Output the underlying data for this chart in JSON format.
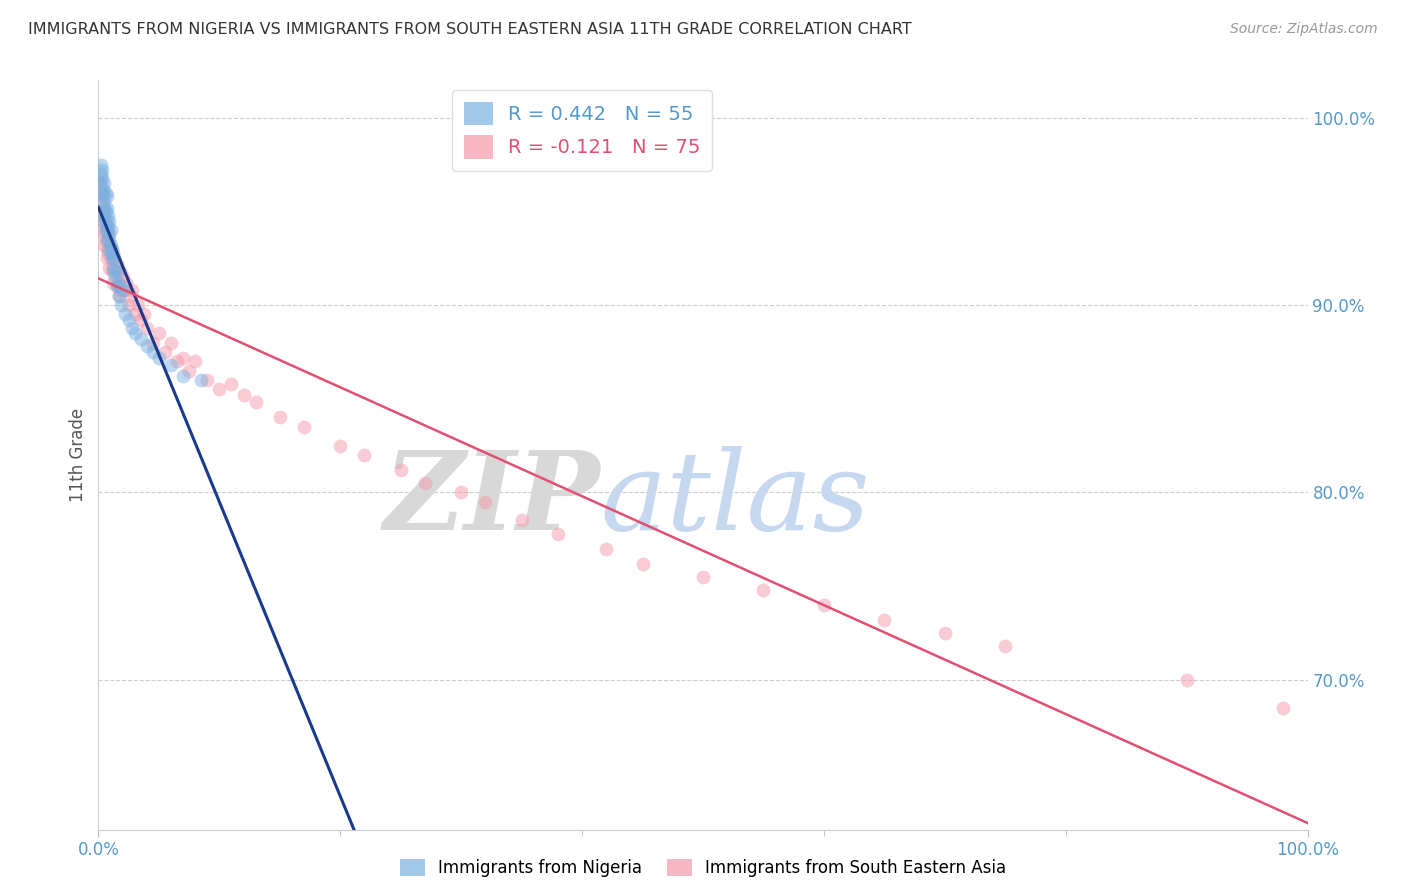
{
  "title": "IMMIGRANTS FROM NIGERIA VS IMMIGRANTS FROM SOUTH EASTERN ASIA 11TH GRADE CORRELATION CHART",
  "source": "Source: ZipAtlas.com",
  "ylabel": "11th Grade",
  "blue_color": "#7ab0e0",
  "pink_color": "#f599aa",
  "blue_line_color": "#1a3a8a",
  "pink_line_color": "#e05070",
  "watermark_zip_color": "#d8d8d8",
  "watermark_atlas_color": "#c5d8f0",
  "title_color": "#333333",
  "source_color": "#999999",
  "axis_label_color": "#5599cc",
  "grid_color": "#cccccc",
  "background_color": "#ffffff",
  "blue_x": [
    0.001,
    0.002,
    0.002,
    0.003,
    0.003,
    0.003,
    0.004,
    0.004,
    0.004,
    0.005,
    0.005,
    0.005,
    0.005,
    0.006,
    0.006,
    0.006,
    0.006,
    0.007,
    0.007,
    0.007,
    0.007,
    0.008,
    0.008,
    0.008,
    0.009,
    0.009,
    0.009,
    0.01,
    0.01,
    0.01,
    0.011,
    0.011,
    0.012,
    0.012,
    0.013,
    0.013,
    0.014,
    0.015,
    0.015,
    0.016,
    0.017,
    0.018,
    0.019,
    0.02,
    0.022,
    0.025,
    0.028,
    0.03,
    0.035,
    0.04,
    0.045,
    0.05,
    0.06,
    0.07,
    0.085
  ],
  "blue_y": [
    0.965,
    0.975,
    0.97,
    0.96,
    0.968,
    0.972,
    0.945,
    0.958,
    0.962,
    0.955,
    0.948,
    0.952,
    0.965,
    0.94,
    0.945,
    0.95,
    0.96,
    0.935,
    0.94,
    0.952,
    0.958,
    0.938,
    0.942,
    0.948,
    0.93,
    0.935,
    0.945,
    0.928,
    0.932,
    0.94,
    0.925,
    0.93,
    0.92,
    0.928,
    0.918,
    0.925,
    0.915,
    0.91,
    0.918,
    0.912,
    0.905,
    0.91,
    0.9,
    0.908,
    0.895,
    0.892,
    0.888,
    0.885,
    0.882,
    0.878,
    0.875,
    0.872,
    0.868,
    0.862,
    0.86
  ],
  "pink_x": [
    0.001,
    0.002,
    0.002,
    0.003,
    0.003,
    0.004,
    0.004,
    0.005,
    0.005,
    0.006,
    0.006,
    0.007,
    0.007,
    0.008,
    0.008,
    0.009,
    0.009,
    0.01,
    0.01,
    0.011,
    0.012,
    0.012,
    0.013,
    0.014,
    0.015,
    0.015,
    0.016,
    0.017,
    0.018,
    0.018,
    0.02,
    0.021,
    0.022,
    0.023,
    0.025,
    0.027,
    0.028,
    0.03,
    0.033,
    0.035,
    0.038,
    0.04,
    0.045,
    0.05,
    0.055,
    0.06,
    0.065,
    0.07,
    0.075,
    0.08,
    0.09,
    0.1,
    0.11,
    0.12,
    0.13,
    0.15,
    0.17,
    0.2,
    0.22,
    0.25,
    0.27,
    0.3,
    0.32,
    0.35,
    0.38,
    0.42,
    0.45,
    0.5,
    0.55,
    0.6,
    0.65,
    0.7,
    0.75,
    0.9,
    0.98
  ],
  "pink_y": [
    0.965,
    0.96,
    0.955,
    0.95,
    0.948,
    0.945,
    0.94,
    0.938,
    0.932,
    0.942,
    0.935,
    0.93,
    0.925,
    0.935,
    0.928,
    0.938,
    0.92,
    0.93,
    0.925,
    0.918,
    0.92,
    0.912,
    0.925,
    0.918,
    0.91,
    0.922,
    0.912,
    0.905,
    0.918,
    0.908,
    0.915,
    0.908,
    0.91,
    0.912,
    0.9,
    0.905,
    0.908,
    0.895,
    0.9,
    0.892,
    0.895,
    0.888,
    0.88,
    0.885,
    0.875,
    0.88,
    0.87,
    0.872,
    0.865,
    0.87,
    0.86,
    0.855,
    0.858,
    0.852,
    0.848,
    0.84,
    0.835,
    0.825,
    0.82,
    0.812,
    0.805,
    0.8,
    0.795,
    0.785,
    0.778,
    0.77,
    0.762,
    0.755,
    0.748,
    0.74,
    0.732,
    0.725,
    0.718,
    0.7,
    0.685
  ],
  "xlim": [
    0.0,
    1.0
  ],
  "ylim": [
    0.62,
    1.02
  ],
  "marker_size": 100
}
